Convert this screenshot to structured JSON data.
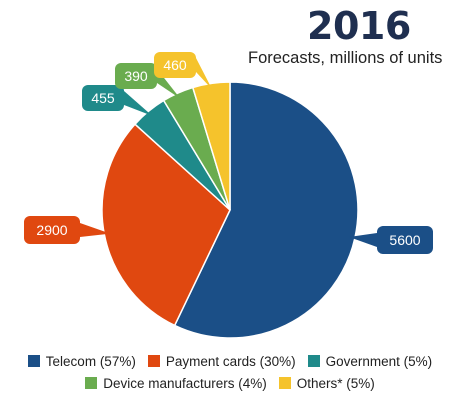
{
  "chart_data": {
    "type": "pie",
    "title": "2016",
    "subtitle": "Forecasts, millions of units",
    "slices": [
      {
        "label": "Telecom (57%)",
        "value": 5600,
        "percent": 57,
        "color": "#1b4f87"
      },
      {
        "label": "Payment cards (30%)",
        "value": 2900,
        "percent": 30,
        "color": "#e04810"
      },
      {
        "label": "Government (5%)",
        "value": 455,
        "percent": 5,
        "color": "#1f8a8a"
      },
      {
        "label": "Device manufacturers (4%)",
        "value": 390,
        "percent": 4,
        "color": "#6aac4f"
      },
      {
        "label": "Others* (5%)",
        "value": 460,
        "percent": 5,
        "color": "#f5c32c"
      }
    ],
    "legend_position": "bottom"
  }
}
